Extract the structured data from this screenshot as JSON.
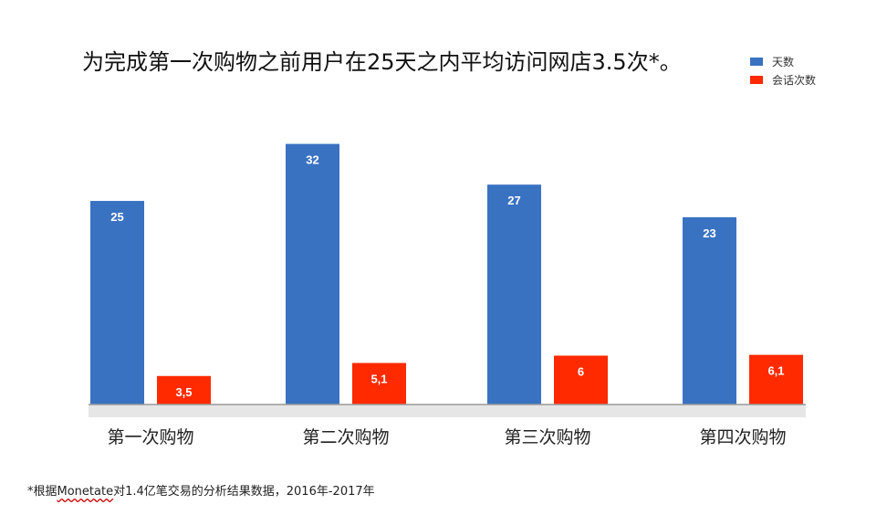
{
  "chart_data": {
    "type": "bar",
    "title": "为完成第一次购物之前用户在25天之内平均访问网店3.5次*。",
    "categories": [
      "第一次购物",
      "第二次购物",
      "第三次购物",
      "第四次购物"
    ],
    "series": [
      {
        "name": "天数",
        "values": [
          25,
          32,
          27,
          23
        ],
        "labels": [
          "25",
          "32",
          "27",
          "23"
        ],
        "color": "#3a72c2"
      },
      {
        "name": "会话次数",
        "values": [
          3.5,
          5.1,
          6,
          6.1
        ],
        "labels": [
          "3,5",
          "5,1",
          "6",
          "6,1"
        ],
        "color": "#ff2a00"
      }
    ],
    "legend_position": "top-right",
    "grid": false,
    "ylim": [
      0,
      37
    ]
  },
  "footnote": {
    "prefix": "*根据",
    "brand": "Monetate",
    "suffix": "对1.4亿笔交易的分析结果数据，2016年-2017年"
  }
}
